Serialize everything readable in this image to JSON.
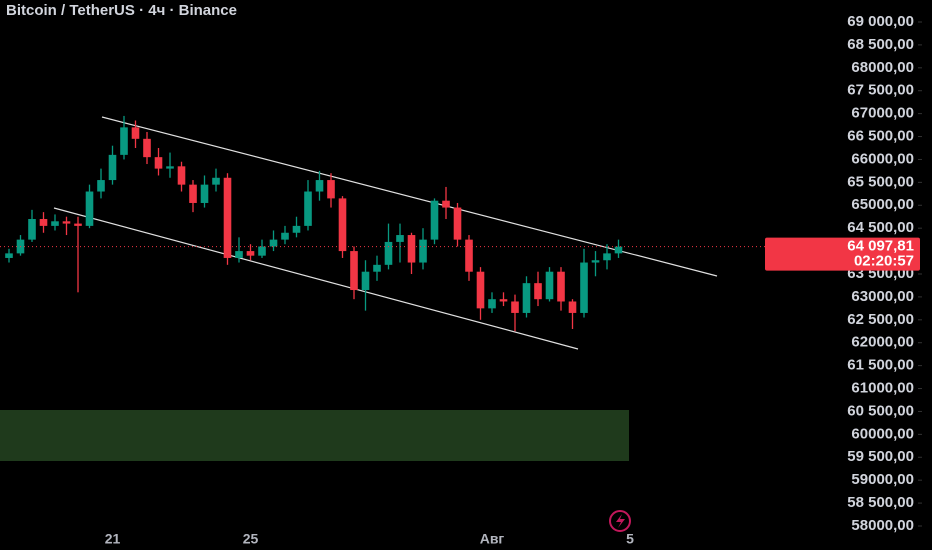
{
  "chart_data": {
    "type": "candlestick",
    "title": "Bitcoin / TetherUS · 4ч · Binance",
    "categories": [
      null,
      null,
      null,
      null,
      null,
      null,
      null,
      null,
      null,
      "21",
      null,
      null,
      null,
      null,
      null,
      null,
      null,
      null,
      null,
      null,
      null,
      "25",
      null,
      null,
      null,
      null,
      null,
      null,
      null,
      null,
      null,
      null,
      null,
      null,
      null,
      null,
      null,
      null,
      null,
      null,
      null,
      null,
      "Авг",
      null,
      null,
      null,
      null,
      null,
      null,
      null,
      null,
      null,
      null,
      null,
      "5"
    ],
    "open": [
      63850,
      63950,
      64250,
      64700,
      64550,
      64650,
      64600,
      64550,
      65300,
      65550,
      66100,
      66700,
      66450,
      66050,
      65800,
      65850,
      65450,
      65050,
      65450,
      65600,
      63850,
      64000,
      63900,
      64100,
      64250,
      64400,
      64550,
      65300,
      65550,
      65150,
      64000,
      63150,
      63550,
      63700,
      64200,
      64350,
      63750,
      64250,
      65100,
      64950,
      64250,
      63550,
      62750,
      62950,
      62900,
      62650,
      63300,
      62950,
      63550,
      62900,
      62650,
      63750,
      63800,
      63950,
      null
    ],
    "high": [
      64050,
      64350,
      64900,
      64850,
      64800,
      64750,
      64750,
      65450,
      65800,
      66300,
      66950,
      66850,
      66600,
      66250,
      66150,
      65950,
      65550,
      65650,
      65800,
      65700,
      64300,
      64150,
      64250,
      64450,
      64550,
      64750,
      65550,
      65750,
      65700,
      65200,
      64100,
      63800,
      63900,
      64600,
      64600,
      64400,
      64500,
      65150,
      65400,
      65050,
      64350,
      63650,
      63100,
      63100,
      63050,
      63450,
      63550,
      63650,
      63650,
      62950,
      64050,
      64000,
      64150,
      64250,
      null
    ],
    "low": [
      63750,
      63900,
      64200,
      64400,
      64450,
      64350,
      63100,
      64500,
      65150,
      65450,
      66000,
      66250,
      65900,
      65650,
      65600,
      65300,
      64850,
      64950,
      65300,
      63700,
      63750,
      63800,
      63850,
      64000,
      64150,
      64300,
      64450,
      65100,
      64950,
      63850,
      62950,
      62700,
      63350,
      63600,
      63750,
      63500,
      63600,
      64150,
      64700,
      64100,
      63350,
      62500,
      62650,
      62800,
      62250,
      62550,
      62800,
      62900,
      62700,
      62300,
      62550,
      63450,
      63600,
      63850,
      null
    ],
    "close": [
      63950,
      64250,
      64700,
      64550,
      64650,
      64600,
      64550,
      65300,
      65550,
      66100,
      66700,
      66450,
      66050,
      65800,
      65850,
      65450,
      65050,
      65450,
      65600,
      63850,
      64000,
      63900,
      64100,
      64250,
      64400,
      64550,
      65300,
      65550,
      65150,
      64000,
      63150,
      63550,
      63700,
      64200,
      64350,
      63750,
      64250,
      65100,
      64950,
      64250,
      63550,
      62750,
      62950,
      62900,
      62650,
      63300,
      62950,
      63550,
      62900,
      62650,
      63750,
      63800,
      63950,
      64097.81,
      null
    ],
    "up_color": "#089981",
    "down_color": "#f23645",
    "ylim": [
      57476,
      69480
    ],
    "yticks": [
      {
        "value": 69000,
        "label": "69 000,00"
      },
      {
        "value": 68500,
        "label": "68 500,00"
      },
      {
        "value": 68000,
        "label": "68000,00"
      },
      {
        "value": 67500,
        "label": "67 500,00"
      },
      {
        "value": 67000,
        "label": "67000,00"
      },
      {
        "value": 66500,
        "label": "66 500,00"
      },
      {
        "value": 66000,
        "label": "66000,00"
      },
      {
        "value": 65500,
        "label": "65 500,00"
      },
      {
        "value": 65000,
        "label": "65000,00"
      },
      {
        "value": 64500,
        "label": "64 500,00"
      },
      {
        "value": 63500,
        "label": "63 500,00"
      },
      {
        "value": 63000,
        "label": "63000,00"
      },
      {
        "value": 62500,
        "label": "62 500,00"
      },
      {
        "value": 62000,
        "label": "62000,00"
      },
      {
        "value": 61500,
        "label": "61 500,00"
      },
      {
        "value": 61000,
        "label": "61000,00"
      },
      {
        "value": 60500,
        "label": "60 500,00"
      },
      {
        "value": 60000,
        "label": "60000,00"
      },
      {
        "value": 59500,
        "label": "59 500,00"
      },
      {
        "value": 59000,
        "label": "59000,00"
      },
      {
        "value": 58500,
        "label": "58 500,00"
      },
      {
        "value": 58000,
        "label": "58000,00"
      }
    ],
    "last_price": {
      "value": 64097.81,
      "label": "64 097,81",
      "countdown": "02:20:57"
    }
  }
}
